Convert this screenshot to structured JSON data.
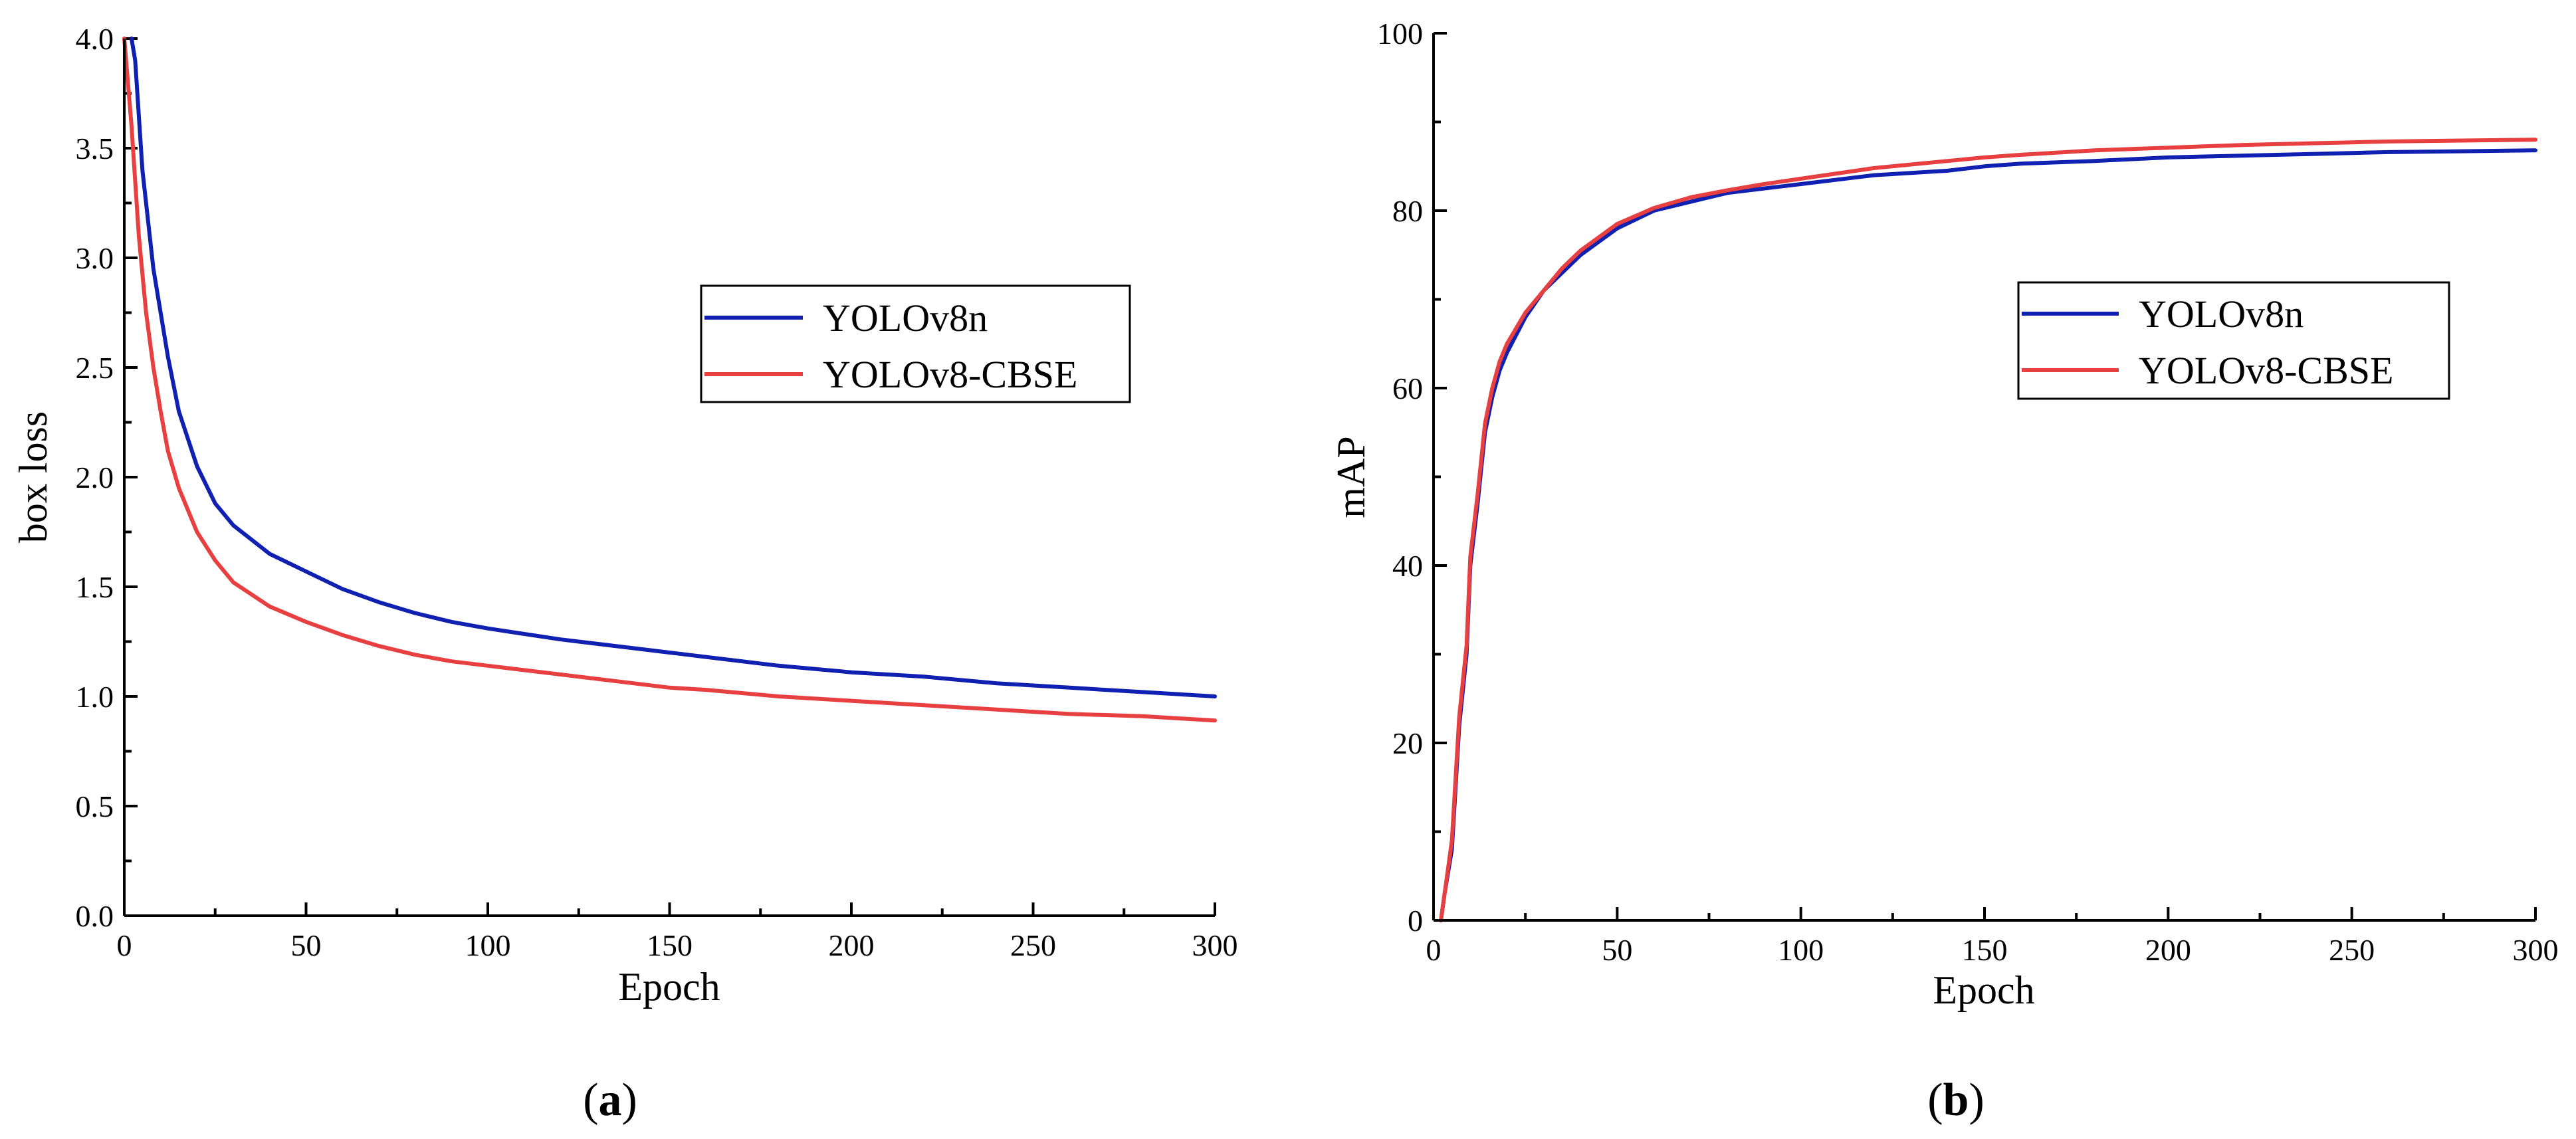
{
  "chart_data": [
    {
      "type": "line",
      "panel_label": "a",
      "xlabel": "Epoch",
      "ylabel": "box loss",
      "xlim": [
        0,
        300
      ],
      "ylim": [
        0,
        4.0
      ],
      "xticks": [
        0,
        50,
        100,
        150,
        200,
        250,
        300
      ],
      "xtick_labels": [
        "0",
        "50",
        "100",
        "150",
        "200",
        "250",
        "300"
      ],
      "yticks": [
        0,
        0.5,
        1.0,
        1.5,
        2.0,
        2.5,
        3.0,
        3.5,
        4.0
      ],
      "ytick_labels": [
        "0.0",
        "0.5",
        "1.0",
        "1.5",
        "2.0",
        "2.5",
        "3.0",
        "3.5",
        "4.0"
      ],
      "legend_position": "center-right",
      "grid": false,
      "series": [
        {
          "name": "YOLOv8n",
          "color": "#1020b0",
          "x": [
            2,
            3,
            5,
            8,
            10,
            12,
            15,
            20,
            25,
            30,
            40,
            50,
            60,
            70,
            80,
            90,
            100,
            120,
            140,
            150,
            160,
            180,
            200,
            220,
            240,
            250,
            260,
            280,
            300
          ],
          "y": [
            4.0,
            3.9,
            3.4,
            2.95,
            2.75,
            2.55,
            2.3,
            2.05,
            1.88,
            1.78,
            1.65,
            1.57,
            1.49,
            1.43,
            1.38,
            1.34,
            1.31,
            1.26,
            1.22,
            1.2,
            1.18,
            1.14,
            1.11,
            1.09,
            1.06,
            1.05,
            1.04,
            1.02,
            1.0
          ]
        },
        {
          "name": "YOLOv8-CBSE",
          "color": "#e84040",
          "x": [
            0,
            1,
            2,
            4,
            6,
            8,
            10,
            12,
            15,
            20,
            25,
            30,
            40,
            50,
            60,
            70,
            80,
            90,
            100,
            120,
            140,
            150,
            160,
            180,
            200,
            220,
            240,
            250,
            260,
            280,
            300
          ],
          "y": [
            4.0,
            3.8,
            3.6,
            3.1,
            2.75,
            2.5,
            2.3,
            2.12,
            1.95,
            1.75,
            1.62,
            1.52,
            1.41,
            1.34,
            1.28,
            1.23,
            1.19,
            1.16,
            1.14,
            1.1,
            1.06,
            1.04,
            1.03,
            1.0,
            0.98,
            0.96,
            0.94,
            0.93,
            0.92,
            0.91,
            0.89
          ]
        }
      ]
    },
    {
      "type": "line",
      "panel_label": "b",
      "xlabel": "Epoch",
      "ylabel": "mAP",
      "xlim": [
        0,
        300
      ],
      "ylim": [
        0,
        100
      ],
      "xticks": [
        0,
        50,
        100,
        150,
        200,
        250,
        300
      ],
      "xtick_labels": [
        "0",
        "50",
        "100",
        "150",
        "200",
        "250",
        "300"
      ],
      "yticks": [
        0,
        20,
        40,
        60,
        80,
        100
      ],
      "ytick_labels": [
        "0",
        "20",
        "40",
        "60",
        "80",
        "100"
      ],
      "legend_position": "center-right",
      "grid": false,
      "series": [
        {
          "name": "YOLOv8n",
          "color": "#1020b0",
          "x": [
            2,
            3,
            5,
            7,
            9,
            10,
            12,
            14,
            16,
            18,
            20,
            25,
            30,
            35,
            40,
            50,
            60,
            70,
            80,
            90,
            100,
            120,
            140,
            150,
            160,
            180,
            200,
            220,
            240,
            250,
            260,
            280,
            300
          ],
          "y": [
            0,
            3,
            8,
            22,
            30,
            40,
            47,
            55,
            59,
            62,
            64,
            68,
            71,
            73,
            75,
            78,
            80,
            81,
            82,
            82.5,
            83,
            84,
            84.5,
            85,
            85.3,
            85.6,
            86,
            86.2,
            86.4,
            86.5,
            86.6,
            86.7,
            86.8
          ]
        },
        {
          "name": "YOLOv8-CBSE",
          "color": "#e84040",
          "x": [
            2,
            3,
            5,
            7,
            9,
            10,
            12,
            14,
            16,
            18,
            20,
            25,
            30,
            35,
            40,
            50,
            60,
            70,
            80,
            90,
            100,
            120,
            140,
            150,
            160,
            180,
            200,
            220,
            240,
            250,
            260,
            280,
            300
          ],
          "y": [
            0,
            3,
            9,
            23,
            31,
            41,
            48,
            56,
            60,
            63,
            65,
            68.5,
            71,
            73.5,
            75.5,
            78.5,
            80.3,
            81.5,
            82.3,
            83,
            83.6,
            84.8,
            85.6,
            86,
            86.3,
            86.8,
            87.1,
            87.4,
            87.6,
            87.7,
            87.8,
            87.9,
            88
          ]
        }
      ]
    }
  ],
  "captions": [
    {
      "open": "(",
      "label": "a",
      "close": ")"
    },
    {
      "open": "(",
      "label": "b",
      "close": ")"
    }
  ]
}
